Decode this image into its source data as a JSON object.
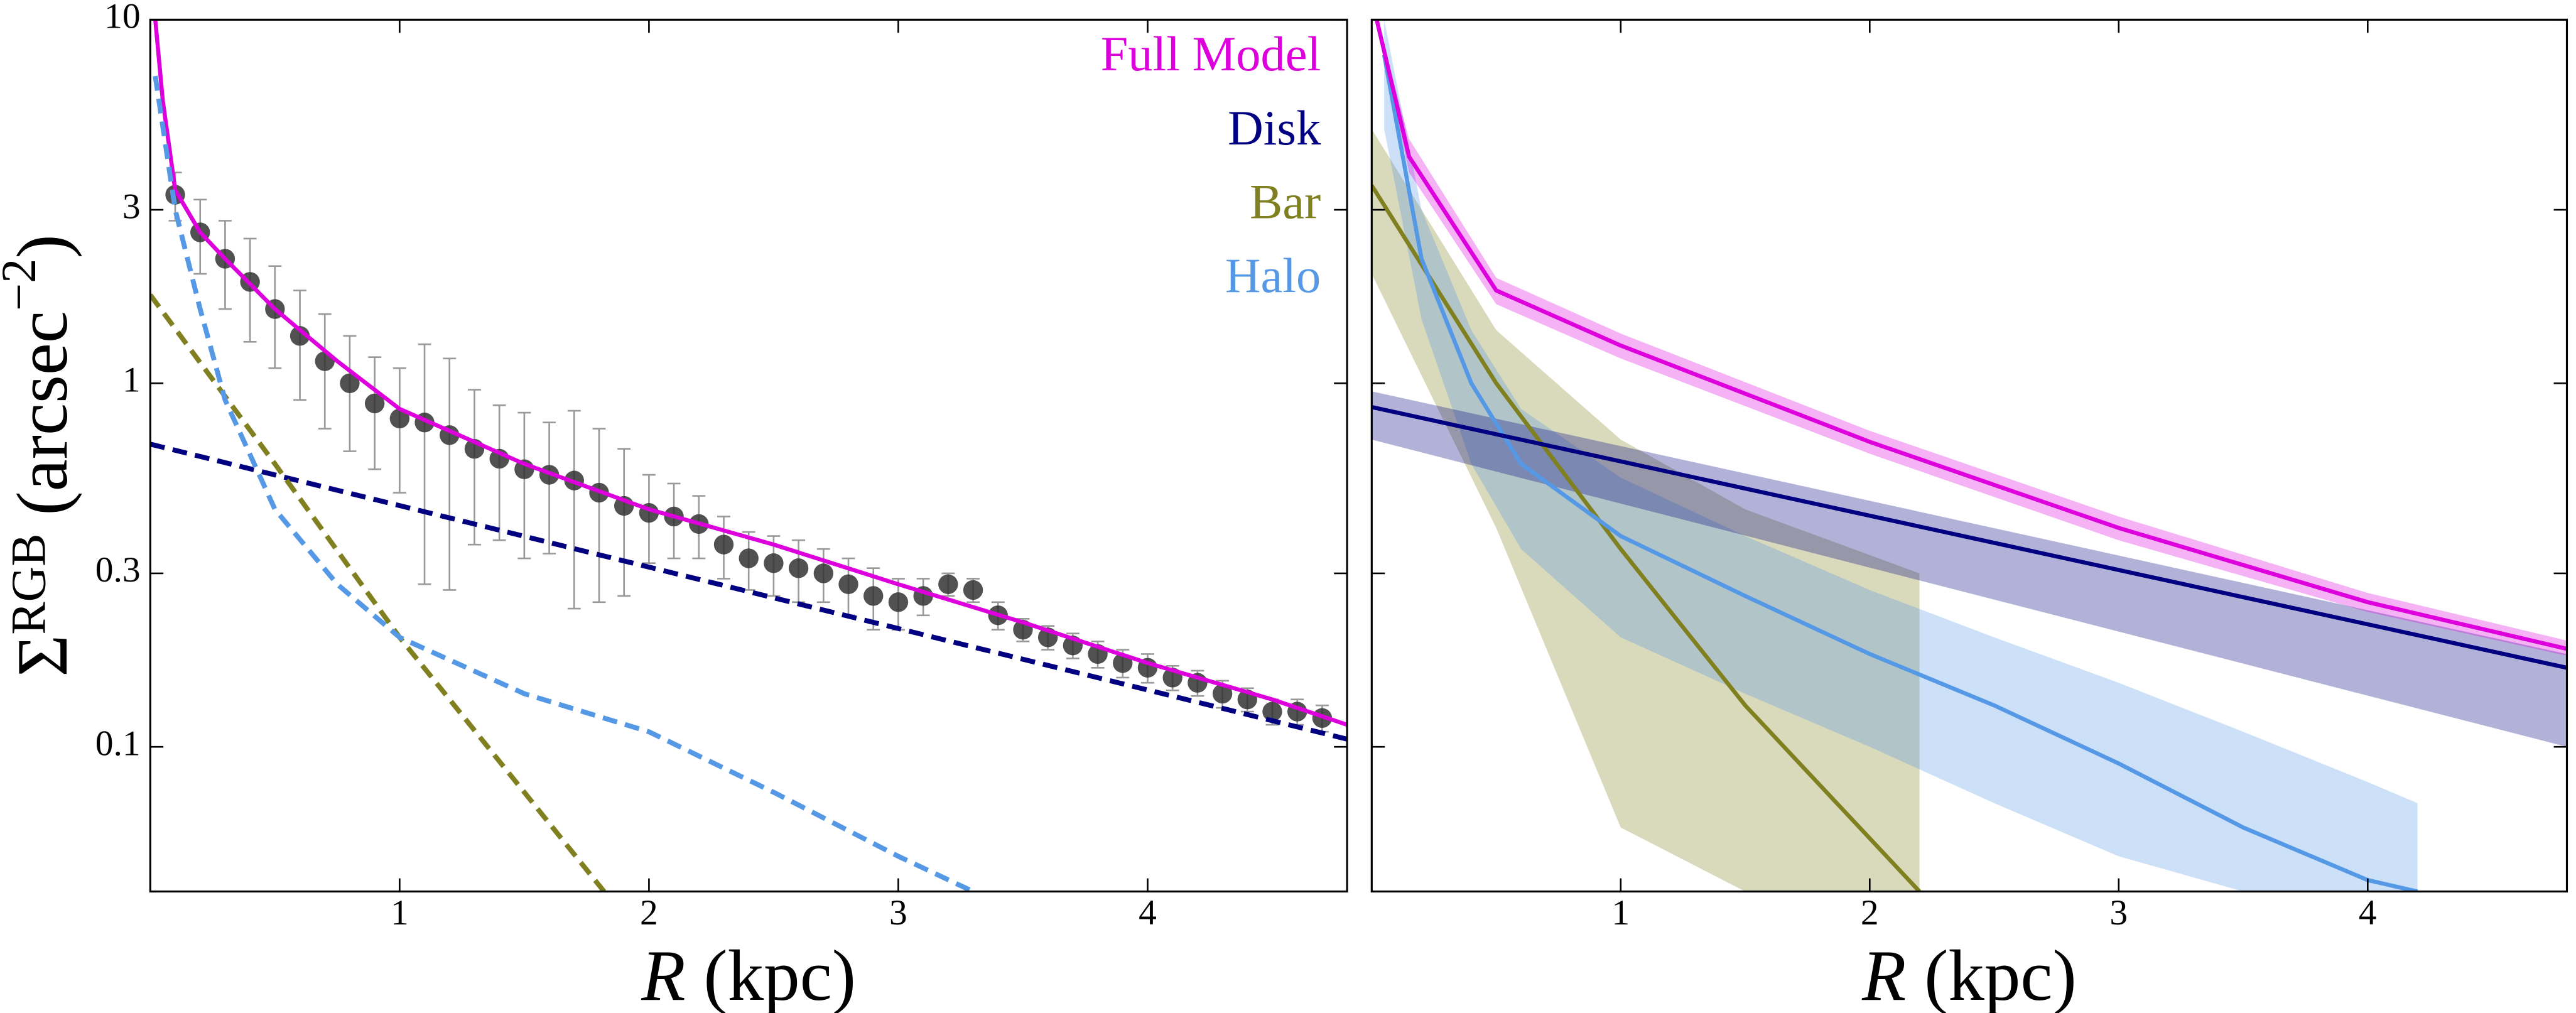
{
  "chart_data": [
    {
      "type": "line",
      "log_y": true,
      "xlim": [
        0,
        4.8
      ],
      "ylim": [
        0.04,
        10
      ],
      "xticks": [
        1,
        2,
        3,
        4
      ],
      "yticks": [
        0.1,
        0.3,
        1,
        3,
        10
      ],
      "ylabel_parts": [
        "Σ",
        "RGB",
        " (arcsec",
        "−2",
        ")"
      ],
      "xlabel_parts": [
        "R",
        " (kpc)"
      ],
      "legend": "upper right",
      "points": {
        "color": "#333333",
        "x": [
          0.1,
          0.2,
          0.3,
          0.4,
          0.5,
          0.6,
          0.7,
          0.8,
          0.9,
          1.0,
          1.1,
          1.2,
          1.3,
          1.4,
          1.5,
          1.6,
          1.7,
          1.8,
          1.9,
          2.0,
          2.1,
          2.2,
          2.3,
          2.4,
          2.5,
          2.6,
          2.7,
          2.8,
          2.9,
          3.0,
          3.1,
          3.2,
          3.3,
          3.4,
          3.5,
          3.6,
          3.7,
          3.8,
          3.9,
          4.0,
          4.1,
          4.2,
          4.3,
          4.4,
          4.5,
          4.6,
          4.7
        ],
        "values": [
          3.3,
          2.6,
          2.2,
          1.9,
          1.6,
          1.35,
          1.15,
          1.0,
          0.88,
          0.8,
          0.78,
          0.72,
          0.66,
          0.62,
          0.58,
          0.56,
          0.54,
          0.5,
          0.46,
          0.44,
          0.43,
          0.41,
          0.36,
          0.33,
          0.32,
          0.31,
          0.3,
          0.28,
          0.26,
          0.25,
          0.26,
          0.28,
          0.27,
          0.23,
          0.21,
          0.2,
          0.19,
          0.18,
          0.17,
          0.165,
          0.155,
          0.15,
          0.14,
          0.135,
          0.125,
          0.125,
          0.12
        ],
        "errors": [
          0.5,
          0.6,
          0.6,
          0.6,
          0.5,
          0.45,
          0.4,
          0.35,
          0.3,
          0.3,
          0.5,
          0.45,
          0.3,
          0.25,
          0.25,
          0.22,
          0.3,
          0.25,
          0.2,
          0.12,
          0.1,
          0.08,
          0.07,
          0.06,
          0.06,
          0.06,
          0.05,
          0.05,
          0.05,
          0.04,
          0.03,
          0.02,
          0.02,
          0.02,
          0.015,
          0.015,
          0.015,
          0.015,
          0.015,
          0.015,
          0.012,
          0.012,
          0.012,
          0.01,
          0.01,
          0.01,
          0.01
        ]
      },
      "series": [
        {
          "name": "Full Model",
          "color": "#dd00dd",
          "dashed": false,
          "x": [
            0.02,
            0.05,
            0.1,
            0.2,
            0.3,
            0.5,
            0.75,
            1,
            1.5,
            2,
            2.5,
            3,
            3.5,
            4,
            4.5,
            4.8
          ],
          "values": [
            10,
            6,
            3.4,
            2.6,
            2.2,
            1.6,
            1.15,
            0.85,
            0.6,
            0.45,
            0.36,
            0.28,
            0.22,
            0.17,
            0.135,
            0.115
          ]
        },
        {
          "name": "Disk",
          "color": "#000080",
          "dashed": true,
          "x": [
            0,
            4.8
          ],
          "values": [
            0.68,
            0.105
          ]
        },
        {
          "name": "Bar",
          "color": "#808020",
          "dashed": true,
          "x": [
            0,
            0.5,
            1,
            1.5,
            1.82
          ],
          "values": [
            1.75,
            0.6,
            0.2,
            0.075,
            0.04
          ]
        },
        {
          "name": "Halo",
          "color": "#5599e6",
          "dashed": true,
          "x": [
            0.02,
            0.1,
            0.2,
            0.3,
            0.5,
            0.75,
            1,
            1.5,
            2,
            2.5,
            3,
            3.3
          ],
          "values": [
            7,
            3,
            1.6,
            0.9,
            0.45,
            0.28,
            0.2,
            0.14,
            0.11,
            0.075,
            0.05,
            0.04
          ]
        }
      ]
    },
    {
      "type": "line",
      "log_y": true,
      "xlim": [
        0,
        4.8
      ],
      "ylim": [
        0.04,
        10
      ],
      "xticks": [
        1,
        2,
        3,
        4
      ],
      "yticks": [
        0.1,
        0.3,
        1,
        3,
        10
      ],
      "ytick_labels": false,
      "xlabel_parts": [
        "R",
        " (kpc)"
      ],
      "series": [
        {
          "color": "#808020",
          "x": [
            0,
            0.5,
            1,
            1.5,
            2.2
          ],
          "values": [
            3.5,
            1.0,
            0.35,
            0.13,
            0.04
          ],
          "lower": [
            2.0,
            0.4,
            0.06,
            0.04,
            0.04
          ],
          "upper": [
            5,
            1.4,
            0.7,
            0.45,
            0.3
          ]
        },
        {
          "color": "#5599e6",
          "x": [
            0.05,
            0.2,
            0.4,
            0.6,
            1,
            1.5,
            2,
            2.5,
            3,
            3.5,
            4,
            4.2
          ],
          "values": [
            8,
            2.2,
            1.0,
            0.6,
            0.38,
            0.26,
            0.18,
            0.13,
            0.09,
            0.06,
            0.043,
            0.04
          ],
          "lower": [
            5,
            1.5,
            0.6,
            0.35,
            0.2,
            0.14,
            0.1,
            0.07,
            0.05,
            0.04,
            0.04,
            0.04
          ],
          "upper": [
            10,
            3,
            1.4,
            0.85,
            0.55,
            0.38,
            0.27,
            0.2,
            0.15,
            0.11,
            0.08,
            0.07
          ]
        },
        {
          "color": "#000080",
          "x": [
            0,
            4.8
          ],
          "values": [
            0.86,
            0.165
          ],
          "lower": [
            0.7,
            0.1
          ],
          "upper": [
            0.95,
            0.18
          ]
        },
        {
          "color": "#dd00dd",
          "x": [
            0.02,
            0.15,
            0.5,
            1,
            2,
            3,
            4,
            4.8
          ],
          "values": [
            10,
            4.2,
            1.8,
            1.27,
            0.69,
            0.4,
            0.25,
            0.186
          ],
          "lower": [
            10,
            3.8,
            1.65,
            1.17,
            0.64,
            0.37,
            0.235,
            0.178
          ],
          "upper": [
            10,
            4.7,
            1.95,
            1.37,
            0.74,
            0.43,
            0.265,
            0.196
          ]
        }
      ]
    }
  ]
}
